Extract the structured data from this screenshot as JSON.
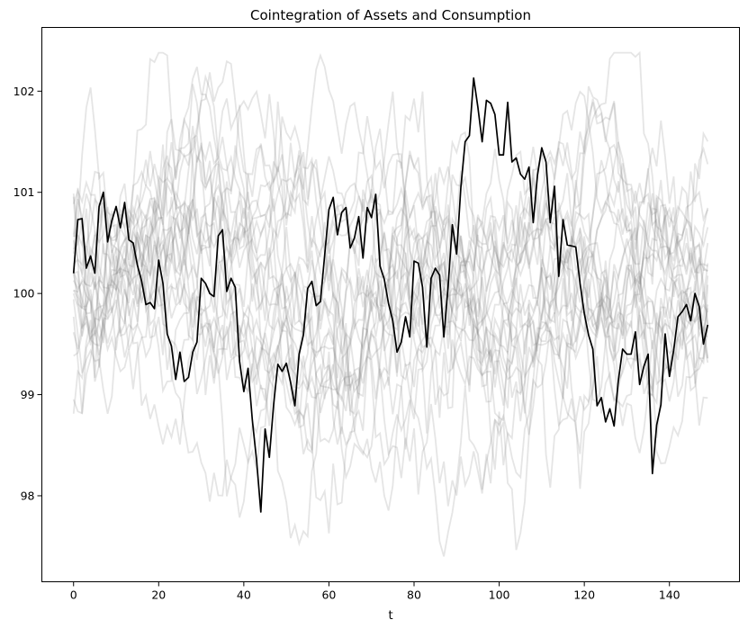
{
  "chart_data": {
    "type": "line",
    "title": "Cointegration of Assets and Consumption",
    "xlabel": "t",
    "ylabel": "",
    "xlim": [
      -7.45,
      156.45
    ],
    "ylim": [
      97.15,
      102.63
    ],
    "xticks": [
      0,
      20,
      40,
      60,
      80,
      100,
      120,
      140
    ],
    "yticks": [
      98,
      99,
      100,
      101,
      102
    ],
    "grid": false,
    "legend": "none",
    "background_paths": {
      "count": 24,
      "t_start": 0,
      "t_end": 149,
      "color": "#7f7f7f",
      "opacity": 0.2,
      "min_approx": 97.4,
      "max_approx": 102.38
    },
    "series": [
      {
        "color": "#000000",
        "x_start": 0,
        "values": [
          100.2,
          100.73,
          100.74,
          100.25,
          100.37,
          100.2,
          100.86,
          101.0,
          100.51,
          100.72,
          100.86,
          100.65,
          100.9,
          100.53,
          100.5,
          100.28,
          100.12,
          99.89,
          99.91,
          99.85,
          100.33,
          100.1,
          99.6,
          99.48,
          99.15,
          99.42,
          99.13,
          99.17,
          99.42,
          99.52,
          100.15,
          100.1,
          100.0,
          99.97,
          100.57,
          100.63,
          100.02,
          100.15,
          100.06,
          99.33,
          99.03,
          99.26,
          98.75,
          98.35,
          97.84,
          98.66,
          98.38,
          98.9,
          99.3,
          99.23,
          99.31,
          99.12,
          98.89,
          99.4,
          99.59,
          100.05,
          100.12,
          99.88,
          99.92,
          100.38,
          100.83,
          100.95,
          100.58,
          100.8,
          100.85,
          100.45,
          100.55,
          100.76,
          100.35,
          100.85,
          100.75,
          100.98,
          100.27,
          100.14,
          99.9,
          99.73,
          99.42,
          99.52,
          99.77,
          99.57,
          100.32,
          100.3,
          100.06,
          99.47,
          100.15,
          100.25,
          100.18,
          99.57,
          100.07,
          100.68,
          100.39,
          101.05,
          101.5,
          101.56,
          102.13,
          101.84,
          101.5,
          101.91,
          101.88,
          101.77,
          101.37,
          101.37,
          101.89,
          101.3,
          101.34,
          101.18,
          101.13,
          101.25,
          100.7,
          101.17,
          101.44,
          101.3,
          100.7,
          101.06,
          100.17,
          100.73,
          100.48,
          100.47,
          100.46,
          100.1,
          99.8,
          99.59,
          99.45,
          98.89,
          98.97,
          98.73,
          98.86,
          98.69,
          99.14,
          99.45,
          99.4,
          99.4,
          99.62,
          99.1,
          99.28,
          99.4,
          98.22,
          98.7,
          98.9,
          99.6,
          99.18,
          99.44,
          99.77,
          99.82,
          99.89,
          99.73,
          100.0,
          99.87,
          99.5,
          99.69
        ]
      }
    ]
  }
}
